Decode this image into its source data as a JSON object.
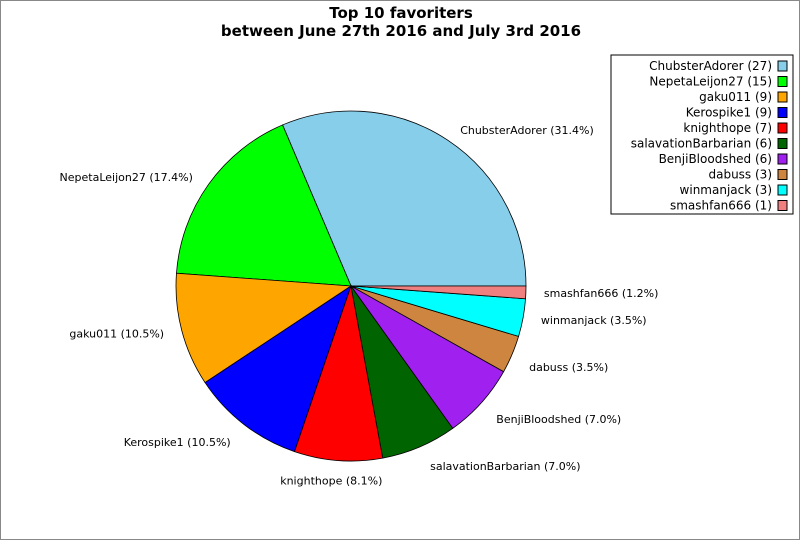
{
  "chart_data": {
    "type": "pie",
    "title": [
      "Top 10 favoriters",
      "between June 27th 2016 and July 3rd 2016"
    ],
    "legend_position": "top-right",
    "slices": [
      {
        "name": "ChubsterAdorer",
        "value": 27,
        "percent": 31.4,
        "color": "#87ceeb",
        "legend_label": "ChubsterAdorer (27)",
        "slice_label": "ChubsterAdorer (31.4%)"
      },
      {
        "name": "NepetaLeijon27",
        "value": 15,
        "percent": 17.4,
        "color": "#00ff00",
        "legend_label": "NepetaLeijon27 (15)",
        "slice_label": "NepetaLeijon27 (17.4%)"
      },
      {
        "name": "gaku011",
        "value": 9,
        "percent": 10.5,
        "color": "#ffa500",
        "legend_label": "gaku011 (9)",
        "slice_label": "gaku011 (10.5%)"
      },
      {
        "name": "Kerospike1",
        "value": 9,
        "percent": 10.5,
        "color": "#0000ff",
        "legend_label": "Kerospike1 (9)",
        "slice_label": "Kerospike1 (10.5%)"
      },
      {
        "name": "knighthope",
        "value": 7,
        "percent": 8.1,
        "color": "#ff0000",
        "legend_label": "knighthope (7)",
        "slice_label": "knighthope (8.1%)"
      },
      {
        "name": "salavationBarbarian",
        "value": 6,
        "percent": 7.0,
        "color": "#006400",
        "legend_label": "salavationBarbarian (6)",
        "slice_label": "salavationBarbarian (7.0%)"
      },
      {
        "name": "BenjiBloodshed",
        "value": 6,
        "percent": 7.0,
        "color": "#a020f0",
        "legend_label": "BenjiBloodshed (6)",
        "slice_label": "BenjiBloodshed (7.0%)"
      },
      {
        "name": "dabuss",
        "value": 3,
        "percent": 3.5,
        "color": "#cd853f",
        "legend_label": "dabuss (3)",
        "slice_label": "dabuss (3.5%)"
      },
      {
        "name": "winmanjack",
        "value": 3,
        "percent": 3.5,
        "color": "#00ffff",
        "legend_label": "winmanjack (3)",
        "slice_label": "winmanjack (3.5%)"
      },
      {
        "name": "smashfan666",
        "value": 1,
        "percent": 1.2,
        "color": "#f08080",
        "legend_label": "smashfan666 (1)",
        "slice_label": "smashfan666 (1.2%)"
      }
    ]
  }
}
